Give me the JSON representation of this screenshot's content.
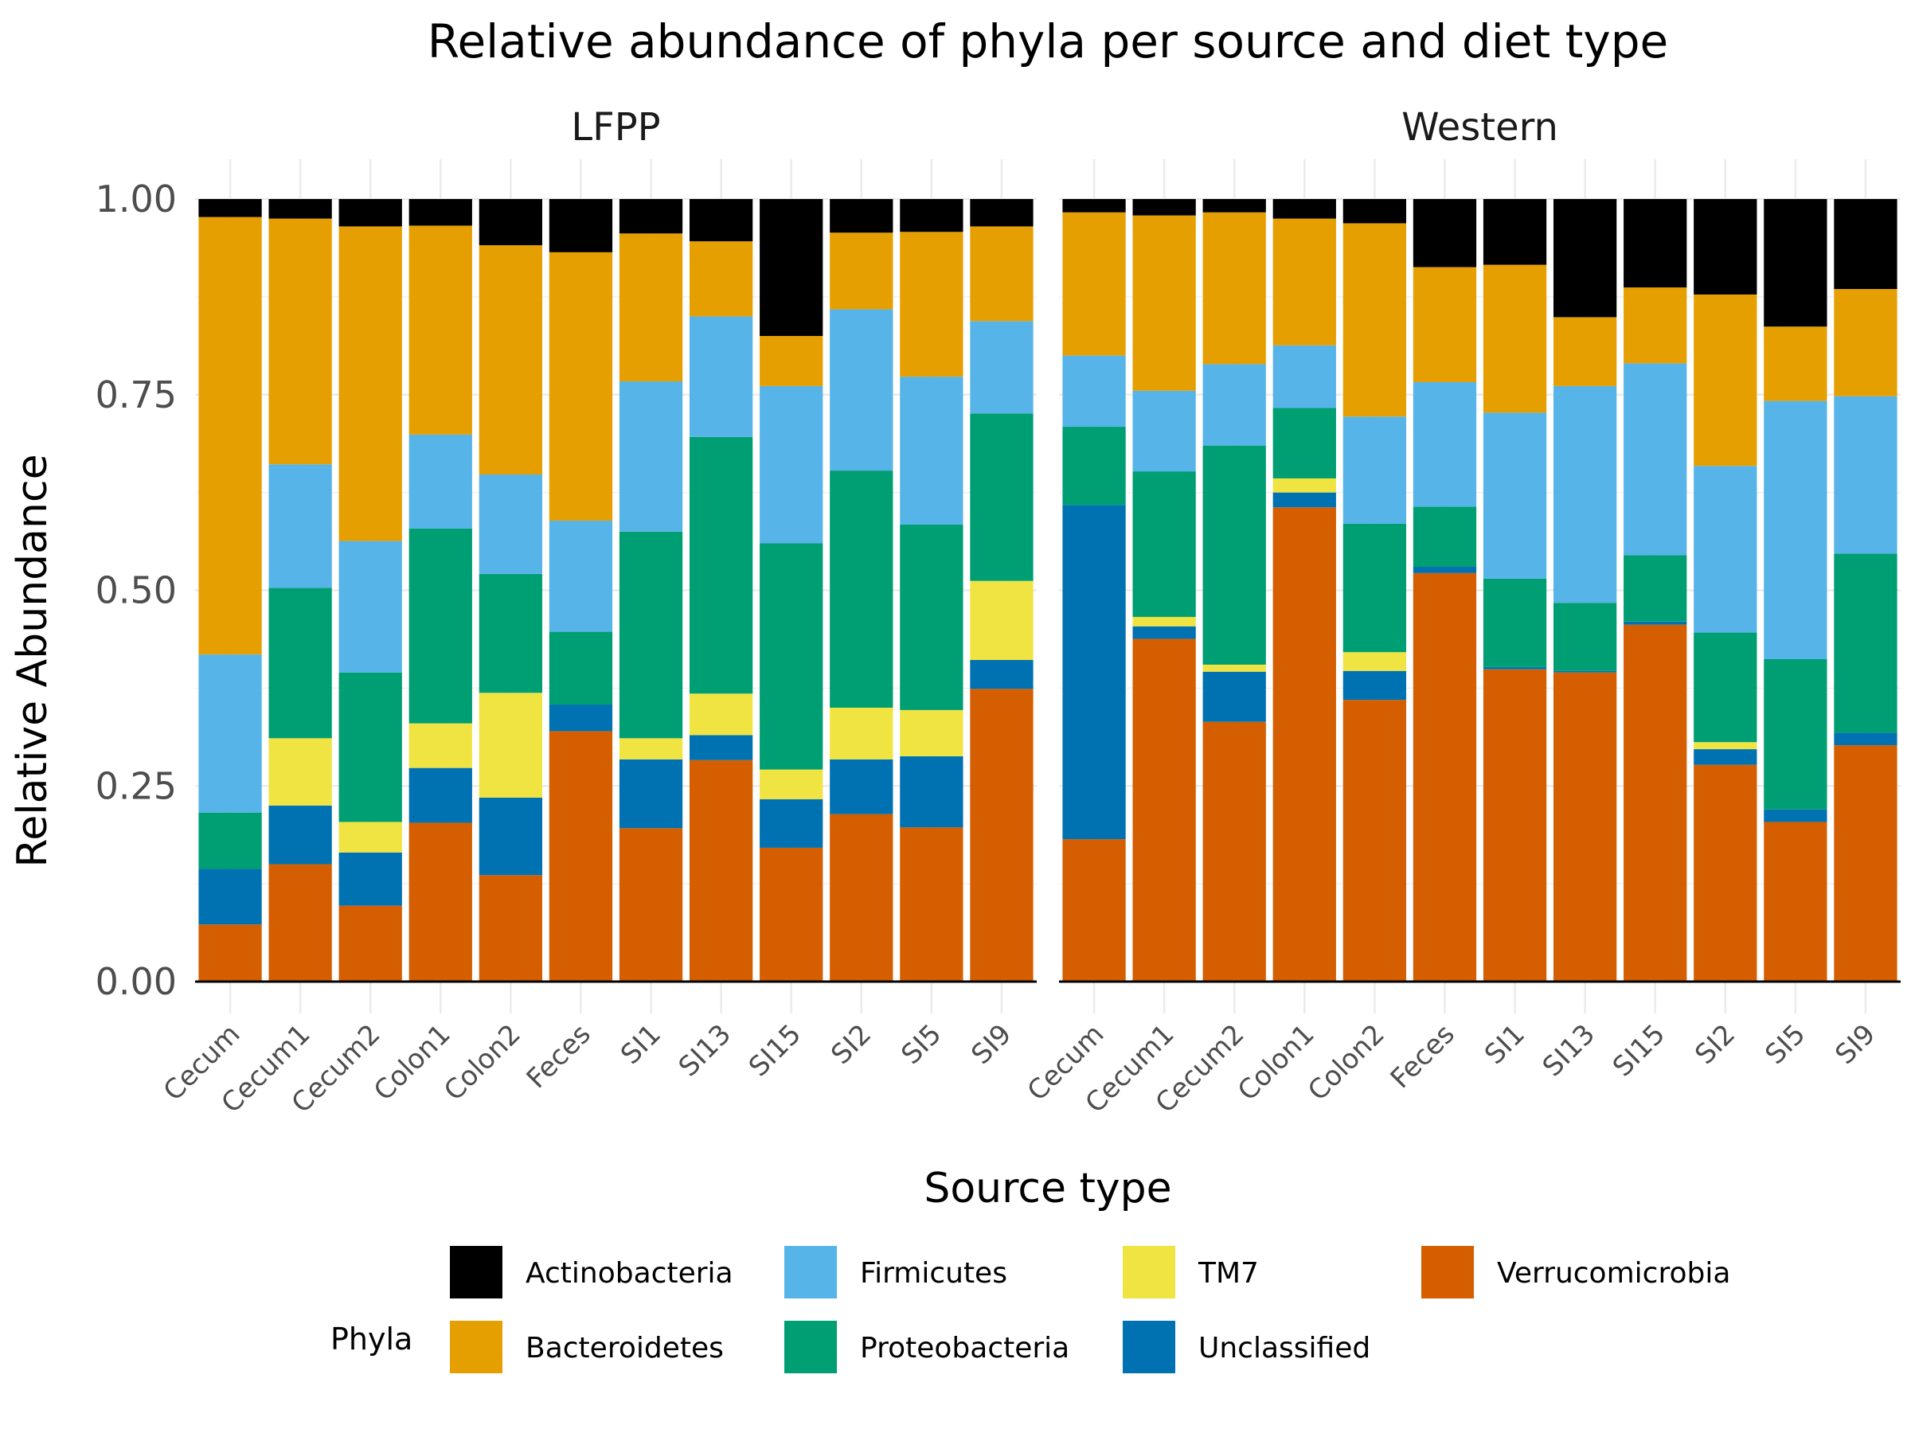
{
  "chart_data": {
    "type": "bar",
    "stacked": true,
    "title": "Relative abundance of phyla per source and diet type",
    "xlabel": "Source type",
    "ylabel": "Relative Abundance",
    "ylim": [
      0,
      1
    ],
    "yticks": [
      "0.00",
      "0.25",
      "0.50",
      "0.75",
      "1.00"
    ],
    "yticks_values": [
      0,
      0.25,
      0.5,
      0.75,
      1.0
    ],
    "grid": true,
    "categories": [
      "Cecum",
      "Cecum1",
      "Cecum2",
      "Colon1",
      "Colon2",
      "Feces",
      "SI1",
      "SI13",
      "SI15",
      "SI2",
      "SI5",
      "SI9"
    ],
    "legend": {
      "title": "Phyla",
      "placement": "bottom",
      "items": [
        "Actinobacteria",
        "Bacteroidetes",
        "Firmicutes",
        "Proteobacteria",
        "TM7",
        "Unclassified",
        "Verrucomicrobia"
      ]
    },
    "colors": {
      "Verrucomicrobia": "#D55E00",
      "Unclassified": "#0072B2",
      "TM7": "#F0E442",
      "Proteobacteria": "#009E73",
      "Firmicutes": "#56B4E9",
      "Bacteroidetes": "#E69F00",
      "Actinobacteria": "#000000"
    },
    "stack_order": [
      "Verrucomicrobia",
      "Unclassified",
      "TM7",
      "Proteobacteria",
      "Firmicutes",
      "Bacteroidetes",
      "Actinobacteria"
    ],
    "facets": [
      {
        "label": "LFPP",
        "series": [
          {
            "name": "Verrucomicrobia",
            "values": [
              0.073,
              0.15,
              0.097,
              0.203,
              0.136,
              0.32,
              0.196,
              0.283,
              0.171,
              0.214,
              0.197,
              0.374
            ]
          },
          {
            "name": "Unclassified",
            "values": [
              0.071,
              0.075,
              0.068,
              0.07,
              0.099,
              0.034,
              0.088,
              0.032,
              0.062,
              0.07,
              0.091,
              0.037
            ]
          },
          {
            "name": "TM7",
            "values": [
              0.0,
              0.086,
              0.039,
              0.057,
              0.134,
              0.0,
              0.027,
              0.053,
              0.038,
              0.066,
              0.059,
              0.101
            ]
          },
          {
            "name": "Proteobacteria",
            "values": [
              0.072,
              0.192,
              0.191,
              0.249,
              0.152,
              0.093,
              0.264,
              0.328,
              0.289,
              0.303,
              0.237,
              0.214
            ]
          },
          {
            "name": "Firmicutes",
            "values": [
              0.202,
              0.158,
              0.168,
              0.12,
              0.127,
              0.142,
              0.192,
              0.154,
              0.201,
              0.206,
              0.189,
              0.118
            ]
          },
          {
            "name": "Bacteroidetes",
            "values": [
              0.559,
              0.314,
              0.402,
              0.267,
              0.293,
              0.343,
              0.189,
              0.096,
              0.064,
              0.098,
              0.185,
              0.121
            ]
          },
          {
            "name": "Actinobacteria",
            "values": [
              0.023,
              0.025,
              0.035,
              0.034,
              0.059,
              0.068,
              0.044,
              0.054,
              0.175,
              0.043,
              0.042,
              0.035
            ]
          }
        ]
      },
      {
        "label": "Western",
        "series": [
          {
            "name": "Verrucomicrobia",
            "values": [
              0.182,
              0.438,
              0.332,
              0.606,
              0.36,
              0.522,
              0.399,
              0.395,
              0.456,
              0.277,
              0.204,
              0.302
            ]
          },
          {
            "name": "Unclassified",
            "values": [
              0.427,
              0.016,
              0.064,
              0.019,
              0.037,
              0.008,
              0.003,
              0.002,
              0.004,
              0.02,
              0.016,
              0.016
            ]
          },
          {
            "name": "TM7",
            "values": [
              0.0,
              0.012,
              0.009,
              0.018,
              0.024,
              0.0,
              0.0,
              0.0,
              0.0,
              0.009,
              0.0,
              0.0
            ]
          },
          {
            "name": "Proteobacteria",
            "values": [
              0.1,
              0.186,
              0.28,
              0.09,
              0.164,
              0.077,
              0.113,
              0.087,
              0.085,
              0.14,
              0.192,
              0.229
            ]
          },
          {
            "name": "Firmicutes",
            "values": [
              0.091,
              0.103,
              0.104,
              0.08,
              0.137,
              0.159,
              0.212,
              0.277,
              0.245,
              0.213,
              0.33,
              0.201
            ]
          },
          {
            "name": "Bacteroidetes",
            "values": [
              0.183,
              0.224,
              0.194,
              0.162,
              0.247,
              0.147,
              0.189,
              0.088,
              0.097,
              0.219,
              0.095,
              0.137
            ]
          },
          {
            "name": "Actinobacteria",
            "values": [
              0.017,
              0.021,
              0.017,
              0.025,
              0.031,
              0.087,
              0.084,
              0.151,
              0.113,
              0.122,
              0.163,
              0.115
            ]
          }
        ]
      }
    ]
  }
}
